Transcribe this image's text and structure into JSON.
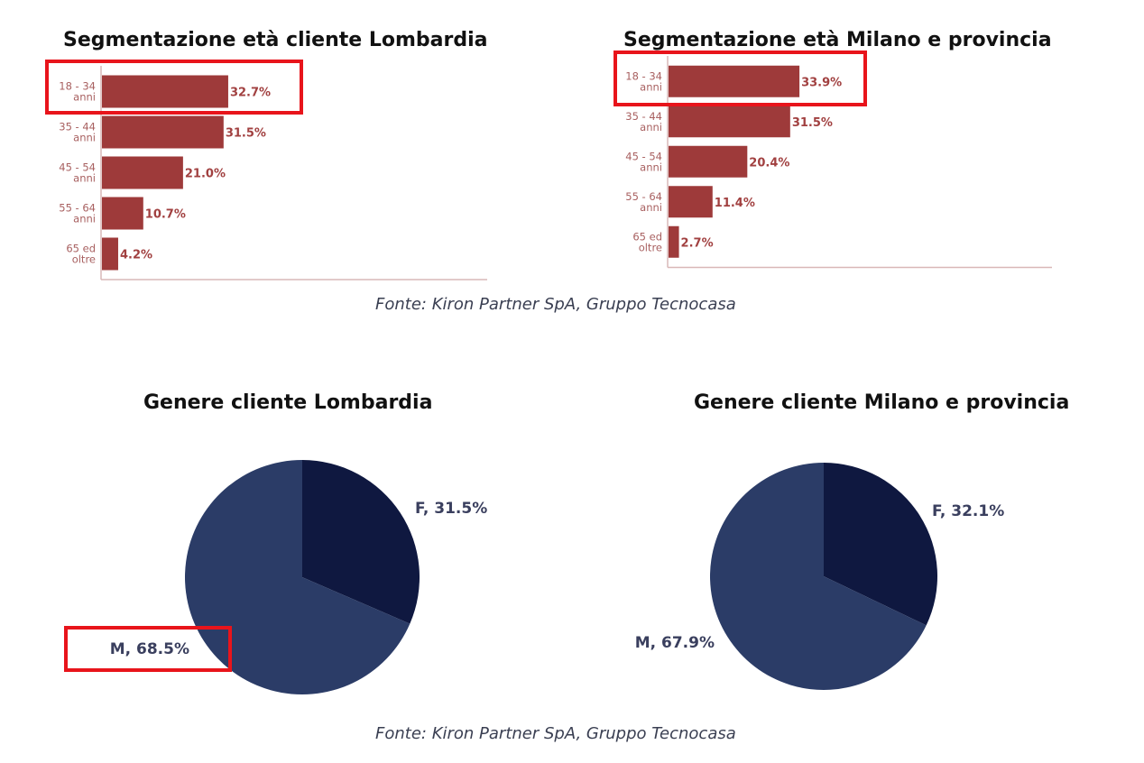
{
  "source_top": "Fonte: Kiron Partner SpA, Gruppo Tecnocasa",
  "source_bottom": "Fonte: Kiron Partner SpA, Gruppo Tecnocasa",
  "colors": {
    "bar": "#9e3a3a",
    "axis": "#d9b8b8",
    "pie_female": "#0f1840",
    "pie_male": "#2b3c67",
    "highlight": "#e8141b"
  },
  "chart_data": [
    {
      "type": "bar",
      "orientation": "horizontal",
      "title": "Segmentazione età cliente Lombardia",
      "categories": [
        [
          "18 - 34",
          "anni"
        ],
        [
          "35 - 44",
          "anni"
        ],
        [
          "45 - 54",
          "anni"
        ],
        [
          "55 - 64",
          "anni"
        ],
        [
          "65 ed",
          "oltre"
        ]
      ],
      "values": [
        32.7,
        31.5,
        21.0,
        10.7,
        4.2
      ],
      "value_labels": [
        "32.7%",
        "31.5%",
        "21.0%",
        "10.7%",
        "4.2%"
      ],
      "highlighted_category_index": 0
    },
    {
      "type": "bar",
      "orientation": "horizontal",
      "title": "Segmentazione età Milano e provincia",
      "categories": [
        [
          "18 - 34",
          "anni"
        ],
        [
          "35 - 44",
          "anni"
        ],
        [
          "45 - 54",
          "anni"
        ],
        [
          "55 - 64",
          "anni"
        ],
        [
          "65 ed",
          "oltre"
        ]
      ],
      "values": [
        33.9,
        31.5,
        20.4,
        11.4,
        2.7
      ],
      "value_labels": [
        "33.9%",
        "31.5%",
        "20.4%",
        "11.4%",
        "2.7%"
      ],
      "highlighted_category_index": 0
    },
    {
      "type": "pie",
      "title": "Genere cliente Lombardia",
      "slices": [
        {
          "name": "F",
          "value": 31.5,
          "label": "F, 31.5%"
        },
        {
          "name": "M",
          "value": 68.5,
          "label": "M, 68.5%"
        }
      ],
      "highlighted_slice": "M"
    },
    {
      "type": "pie",
      "title": "Genere cliente Milano e provincia",
      "slices": [
        {
          "name": "F",
          "value": 32.1,
          "label": "F, 32.1%"
        },
        {
          "name": "M",
          "value": 67.9,
          "label": "M, 67.9%"
        }
      ]
    }
  ]
}
